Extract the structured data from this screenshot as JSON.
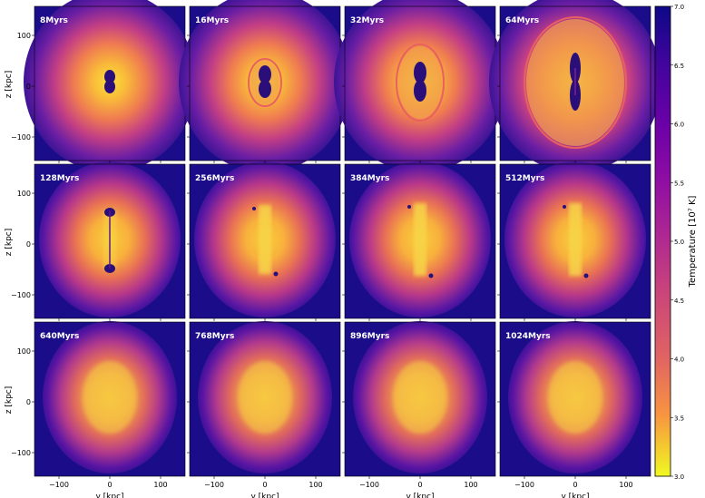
{
  "figure": {
    "panels": [
      {
        "time": "8Myrs"
      },
      {
        "time": "16Myrs"
      },
      {
        "time": "32Myrs"
      },
      {
        "time": "64Myrs"
      },
      {
        "time": "128Myrs"
      },
      {
        "time": "256Myrs"
      },
      {
        "time": "384Myrs"
      },
      {
        "time": "512Myrs"
      },
      {
        "time": "640Myrs"
      },
      {
        "time": "768Myrs"
      },
      {
        "time": "896Myrs"
      },
      {
        "time": "1024Myrs"
      }
    ],
    "xlabel": "y [kpc]",
    "ylabel": "z [kpc]",
    "x_ticks": [
      "−100",
      "0",
      "100"
    ],
    "y_ticks": [
      "100",
      "0",
      "−100"
    ],
    "colorbar": {
      "label": "Temperature [10⁷ K]",
      "ticks": [
        "7.0",
        "6.5",
        "6.0",
        "5.5",
        "5.0",
        "4.5",
        "4.0",
        "3.5",
        "3.0"
      ],
      "colormap": "plasma",
      "min": 3.0,
      "max": 7.0
    },
    "colors": {
      "outer": "#1b0d8a",
      "mid": "#c13d86",
      "core": "#f6d93a",
      "jet": "#2a0f7a"
    }
  }
}
